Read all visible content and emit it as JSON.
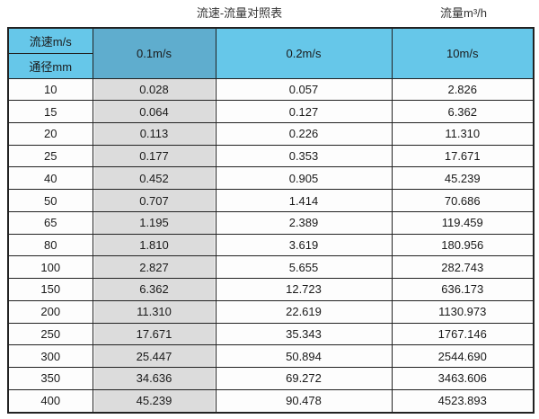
{
  "page": {
    "title_left": "流速-流量对照表",
    "title_right": "流量m³/h"
  },
  "colors": {
    "header_blue": "#66c7e9",
    "header_blue_dark": "#5fadce",
    "shaded_column_gray": "#dcdcdc",
    "border": "#222222",
    "cell_white": "#fdfdfd"
  },
  "table": {
    "corner_top_label": "流速m/s",
    "corner_bottom_label": "通径mm",
    "velocity_columns": [
      "0.1m/s",
      "0.2m/s",
      "10m/s"
    ],
    "rows": [
      {
        "diameter": "10",
        "values": [
          "0.028",
          "0.057",
          "2.826"
        ]
      },
      {
        "diameter": "15",
        "values": [
          "0.064",
          "0.127",
          "6.362"
        ]
      },
      {
        "diameter": "20",
        "values": [
          "0.113",
          "0.226",
          "11.310"
        ]
      },
      {
        "diameter": "25",
        "values": [
          "0.177",
          "0.353",
          "17.671"
        ]
      },
      {
        "diameter": "40",
        "values": [
          "0.452",
          "0.905",
          "45.239"
        ]
      },
      {
        "diameter": "50",
        "values": [
          "0.707",
          "1.414",
          "70.686"
        ]
      },
      {
        "diameter": "65",
        "values": [
          "1.195",
          "2.389",
          "119.459"
        ]
      },
      {
        "diameter": "80",
        "values": [
          "1.810",
          "3.619",
          "180.956"
        ]
      },
      {
        "diameter": "100",
        "values": [
          "2.827",
          "5.655",
          "282.743"
        ]
      },
      {
        "diameter": "150",
        "values": [
          "6.362",
          "12.723",
          "636.173"
        ]
      },
      {
        "diameter": "200",
        "values": [
          "11.310",
          "22.619",
          "1130.973"
        ]
      },
      {
        "diameter": "250",
        "values": [
          "17.671",
          "35.343",
          "1767.146"
        ]
      },
      {
        "diameter": "300",
        "values": [
          "25.447",
          "50.894",
          "2544.690"
        ]
      },
      {
        "diameter": "350",
        "values": [
          "34.636",
          "69.272",
          "3463.606"
        ]
      },
      {
        "diameter": "400",
        "values": [
          "45.239",
          "90.478",
          "4523.893"
        ]
      }
    ]
  },
  "chart_data": {
    "type": "table",
    "title": "流速-流量对照表",
    "unit_label": "流量m³/h",
    "row_axis_label": "通径mm",
    "column_axis_label": "流速m/s",
    "columns": [
      "0.1m/s",
      "0.2m/s",
      "10m/s"
    ],
    "diameters_mm": [
      10,
      15,
      20,
      25,
      40,
      50,
      65,
      80,
      100,
      150,
      200,
      250,
      300,
      350,
      400
    ],
    "flow_rates_m3h": [
      [
        0.028,
        0.057,
        2.826
      ],
      [
        0.064,
        0.127,
        6.362
      ],
      [
        0.113,
        0.226,
        11.31
      ],
      [
        0.177,
        0.353,
        17.671
      ],
      [
        0.452,
        0.905,
        45.239
      ],
      [
        0.707,
        1.414,
        70.686
      ],
      [
        1.195,
        2.389,
        119.459
      ],
      [
        1.81,
        3.619,
        180.956
      ],
      [
        2.827,
        5.655,
        282.743
      ],
      [
        6.362,
        12.723,
        636.173
      ],
      [
        11.31,
        22.619,
        1130.973
      ],
      [
        17.671,
        35.343,
        1767.146
      ],
      [
        25.447,
        50.894,
        2544.69
      ],
      [
        34.636,
        69.272,
        3463.606
      ],
      [
        45.239,
        90.478,
        4523.893
      ]
    ]
  }
}
